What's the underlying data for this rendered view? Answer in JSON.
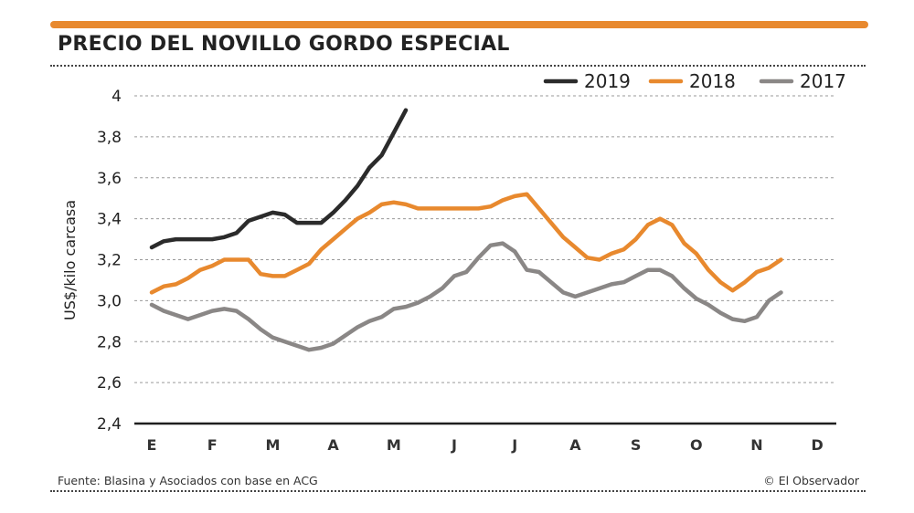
{
  "header": {
    "title": "PRECIO DEL NOVILLO GORDO ESPECIAL",
    "accent_color": "#e8892e"
  },
  "footer": {
    "source": "Fuente: Blasina y Asociados con base en ACG",
    "credit": "© El Observador"
  },
  "chart_data": {
    "type": "line",
    "title": "PRECIO DEL NOVILLO GORDO ESPECIAL",
    "xlabel": "",
    "ylabel": "US$/kilo carcasa",
    "ylim": [
      2.4,
      4.0
    ],
    "yticks": [
      "4",
      "3,8",
      "3,6",
      "3,4",
      "3,2",
      "3,0",
      "2,8",
      "2,6",
      "2,4"
    ],
    "ytick_values": [
      4.0,
      3.8,
      3.6,
      3.4,
      3.2,
      3.0,
      2.8,
      2.6,
      2.4
    ],
    "categories": [
      "E",
      "F",
      "M",
      "A",
      "M",
      "J",
      "J",
      "A",
      "S",
      "O",
      "N",
      "D"
    ],
    "grid": "horizontal dashed",
    "legend_position": "top-right",
    "series": [
      {
        "name": "2019",
        "color": "#2b2b2b",
        "x": [
          0.0,
          0.2,
          0.4,
          0.6,
          0.8,
          1.0,
          1.2,
          1.4,
          1.6,
          1.8,
          2.0,
          2.2,
          2.4,
          2.6,
          2.8,
          3.0,
          3.2,
          3.4,
          3.6,
          3.8,
          4.0,
          4.2,
          4.4,
          4.6
        ],
        "values": [
          3.26,
          3.29,
          3.3,
          3.3,
          3.3,
          3.3,
          3.31,
          3.33,
          3.39,
          3.41,
          3.43,
          3.42,
          3.38,
          3.38,
          3.38,
          3.43,
          3.49,
          3.56,
          3.65,
          3.71,
          3.82,
          3.93,
          null,
          null
        ]
      },
      {
        "name": "2018",
        "color": "#e8892e",
        "x": [
          0.0,
          0.2,
          0.4,
          0.6,
          0.8,
          1.0,
          1.2,
          1.4,
          1.6,
          1.8,
          2.0,
          2.2,
          2.4,
          2.6,
          2.8,
          3.0,
          3.2,
          3.4,
          3.6,
          3.8,
          4.0,
          4.2,
          4.4,
          4.6,
          4.8,
          5.0,
          5.2,
          5.4,
          5.6,
          5.8,
          6.0,
          6.2,
          6.4,
          6.6,
          6.8,
          7.0,
          7.2,
          7.4,
          7.6,
          7.8,
          8.0,
          8.2,
          8.4,
          8.6,
          8.8,
          9.0,
          9.2,
          9.4,
          9.6,
          9.8,
          10.0,
          10.2,
          10.4,
          10.6,
          10.8,
          11.0
        ],
        "values": [
          3.04,
          3.07,
          3.08,
          3.11,
          3.15,
          3.17,
          3.2,
          3.2,
          3.2,
          3.13,
          3.12,
          3.12,
          3.15,
          3.18,
          3.25,
          3.3,
          3.35,
          3.4,
          3.43,
          3.47,
          3.48,
          3.47,
          3.45,
          3.45,
          3.45,
          3.45,
          3.45,
          3.45,
          3.46,
          3.49,
          3.51,
          3.52,
          3.45,
          3.38,
          3.31,
          3.26,
          3.21,
          3.2,
          3.23,
          3.25,
          3.3,
          3.37,
          3.4,
          3.37,
          3.28,
          3.23,
          3.15,
          3.09,
          3.05,
          3.09,
          3.14,
          3.16,
          3.2,
          null,
          null,
          null
        ]
      },
      {
        "name": "2017",
        "color": "#8a8786",
        "x": [
          0.0,
          0.2,
          0.4,
          0.6,
          0.8,
          1.0,
          1.2,
          1.4,
          1.6,
          1.8,
          2.0,
          2.2,
          2.4,
          2.6,
          2.8,
          3.0,
          3.2,
          3.4,
          3.6,
          3.8,
          4.0,
          4.2,
          4.4,
          4.6,
          4.8,
          5.0,
          5.2,
          5.4,
          5.6,
          5.8,
          6.0,
          6.2,
          6.4,
          6.6,
          6.8,
          7.0,
          7.2,
          7.4,
          7.6,
          7.8,
          8.0,
          8.2,
          8.4,
          8.6,
          8.8,
          9.0,
          9.2,
          9.4,
          9.6,
          9.8,
          10.0,
          10.2,
          10.4,
          10.6,
          10.8,
          11.0
        ],
        "values": [
          2.98,
          2.95,
          2.93,
          2.91,
          2.93,
          2.95,
          2.96,
          2.95,
          2.91,
          2.86,
          2.82,
          2.8,
          2.78,
          2.76,
          2.77,
          2.79,
          2.83,
          2.87,
          2.9,
          2.92,
          2.96,
          2.97,
          2.99,
          3.02,
          3.06,
          3.12,
          3.14,
          3.21,
          3.27,
          3.28,
          3.24,
          3.15,
          3.14,
          3.09,
          3.04,
          3.02,
          3.04,
          3.06,
          3.08,
          3.09,
          3.12,
          3.15,
          3.15,
          3.12,
          3.06,
          3.01,
          2.98,
          2.94,
          2.91,
          2.9,
          2.92,
          3.0,
          3.04,
          null,
          null,
          null
        ]
      }
    ]
  }
}
